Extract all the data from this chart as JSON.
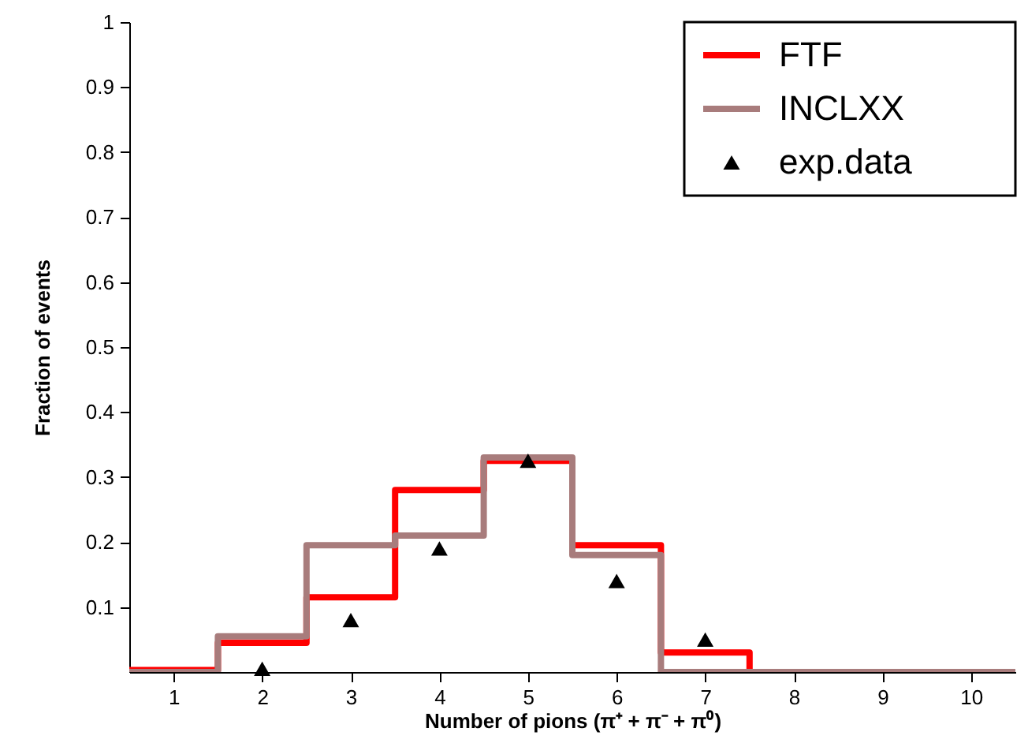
{
  "chart_data": {
    "type": "histogram",
    "xlabel": "Number of pions (π⁺ + π⁻ + π⁰)",
    "ylabel": "Fraction of events",
    "bins": [
      0.5,
      1.5,
      2.5,
      3.5,
      4.5,
      5.5,
      6.5,
      7.5,
      8.5,
      9.5,
      10.5
    ],
    "series": [
      {
        "name": "FTF",
        "color": "#ff0000",
        "values": [
          0.003,
          0.045,
          0.115,
          0.28,
          0.325,
          0.195,
          0.03,
          0,
          0,
          0
        ]
      },
      {
        "name": "INCLXX",
        "color": "#a87c7c",
        "values": [
          0,
          0.055,
          0.195,
          0.21,
          0.33,
          0.18,
          0,
          0,
          0,
          0
        ]
      },
      {
        "name": "exp.data",
        "type": "scatter",
        "marker": "triangle",
        "color": "#000000",
        "x": [
          2,
          3,
          4,
          5,
          6,
          7
        ],
        "values": [
          0.005,
          0.08,
          0.19,
          0.325,
          0.14,
          0.05
        ]
      }
    ],
    "xlim": [
      0.5,
      10.5
    ],
    "xticks": [
      1,
      2,
      3,
      4,
      5,
      6,
      7,
      8,
      9,
      10
    ],
    "ylim": [
      0,
      1
    ],
    "yticks": [
      0.1,
      0.2,
      0.3,
      0.4,
      0.5,
      0.6,
      0.7,
      0.8,
      0.9,
      1
    ],
    "grid": false,
    "legend": "top right"
  }
}
